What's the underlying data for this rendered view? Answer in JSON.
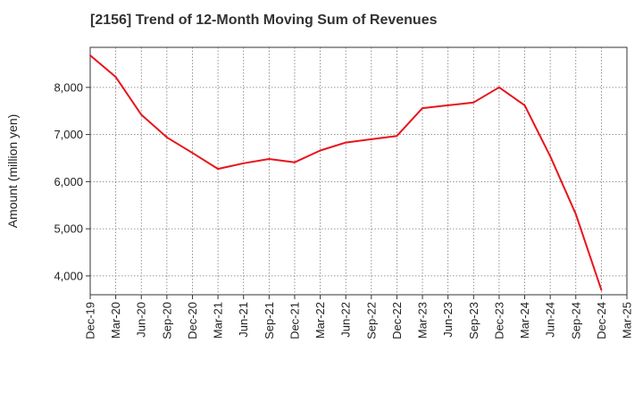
{
  "chart_data": {
    "type": "line",
    "title": "[2156]  Trend of 12-Month Moving Sum of Revenues",
    "ylabel": "Amount (million yen)",
    "xlabel": "",
    "x": [
      "Dec-19",
      "Mar-20",
      "Jun-20",
      "Sep-20",
      "Dec-20",
      "Mar-21",
      "Jun-21",
      "Sep-21",
      "Dec-21",
      "Mar-22",
      "Jun-22",
      "Sep-22",
      "Dec-22",
      "Mar-23",
      "Jun-23",
      "Sep-23",
      "Dec-23",
      "Mar-24",
      "Jun-24",
      "Sep-24",
      "Dec-24",
      "Mar-25"
    ],
    "x_tick_labels": [
      "Dec-19",
      "Mar-20",
      "Jun-20",
      "Sep-20",
      "Dec-20",
      "Mar-21",
      "Jun-21",
      "Sep-21",
      "Dec-21",
      "Mar-22",
      "Jun-22",
      "Sep-22",
      "Dec-22",
      "Mar-23",
      "Jun-23",
      "Sep-23",
      "Dec-23",
      "Mar-24",
      "Jun-24",
      "Sep-24",
      "Dec-24",
      "Mar-25"
    ],
    "y_ticks": [
      4000,
      5000,
      6000,
      7000,
      8000
    ],
    "y_tick_labels": [
      "4,000",
      "5,000",
      "6,000",
      "7,000",
      "8,000"
    ],
    "ylim": [
      3600,
      8850
    ],
    "grid": true,
    "series": [
      {
        "color": "#e8141b",
        "values": [
          8680,
          8220,
          7420,
          6940,
          6610,
          6270,
          6390,
          6480,
          6410,
          6660,
          6830,
          6900,
          6970,
          7560,
          7620,
          7680,
          8000,
          7620,
          6540,
          5310,
          3700,
          null
        ]
      }
    ]
  }
}
